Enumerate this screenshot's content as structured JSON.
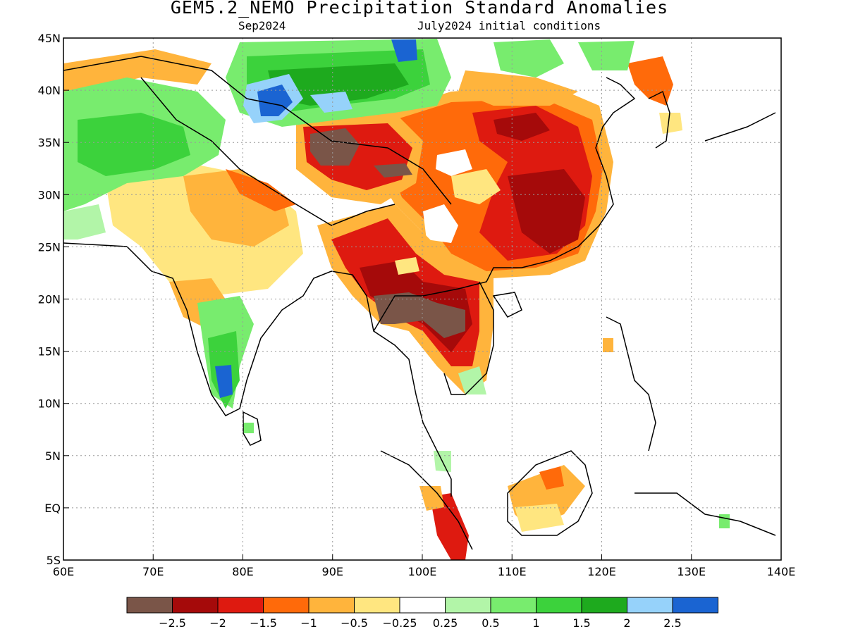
{
  "title": "GEM5.2_NEMO Precipitation Standard Anomalies",
  "subtitle_left": "Sep2024",
  "subtitle_right": "July2024 initial conditions",
  "axes": {
    "x_ticks": [
      "60E",
      "70E",
      "80E",
      "90E",
      "100E",
      "110E",
      "120E",
      "130E",
      "140E"
    ],
    "y_ticks": [
      "45N",
      "40N",
      "35N",
      "30N",
      "25N",
      "20N",
      "15N",
      "10N",
      "5N",
      "EQ",
      "5S"
    ],
    "lon_range": [
      60,
      140
    ],
    "lat_range": [
      -5,
      45
    ]
  },
  "colorbar": {
    "colors": [
      "#7a5548",
      "#a50a0a",
      "#de1a10",
      "#ff6a0a",
      "#ffb43c",
      "#ffe680",
      "#ffffff",
      "#b2f5a8",
      "#78ec6e",
      "#3cd23c",
      "#1eaa1e",
      "#96d2fa",
      "#1a64d2"
    ],
    "labels": [
      "-2.5",
      "-2",
      "-1.5",
      "-1",
      "-0.5",
      "-0.25",
      "0.25",
      "0.5",
      "1",
      "1.5",
      "2",
      "2.5"
    ]
  },
  "map_data": {
    "variable": "Precipitation Standard Anomalies",
    "region": "South and East Asia",
    "regions": [
      {
        "name": "central-china-dry",
        "anomaly": -2.0
      },
      {
        "name": "tibet-strong-dry",
        "anomaly": -2.5
      },
      {
        "name": "indochina-strong-dry",
        "anomaly": -2.5
      },
      {
        "name": "myanmar-dry",
        "anomaly": -2.0
      },
      {
        "name": "sumatra-dry",
        "anomaly": -2.0
      },
      {
        "name": "borneo-dry",
        "anomaly": -1.0
      },
      {
        "name": "korea-dry",
        "anomaly": -1.0
      },
      {
        "name": "xinjiang-wet",
        "anomaly": 2.5
      },
      {
        "name": "mongolia-wet",
        "anomaly": 2.0
      },
      {
        "name": "afghanistan-wet",
        "anomaly": 1.0
      },
      {
        "name": "south-india-wet",
        "anomaly": 2.5
      },
      {
        "name": "northwest-india-dry",
        "anomaly": -0.5
      }
    ]
  }
}
